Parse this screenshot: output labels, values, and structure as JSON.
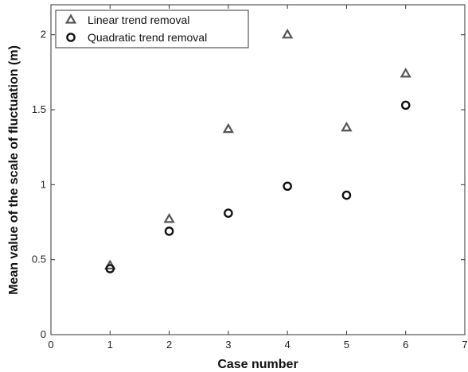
{
  "chart_data": {
    "type": "scatter",
    "title": "",
    "xlabel": "Case number",
    "ylabel": "Mean value of the scale of fluctuation (m)",
    "xlim": [
      0,
      7
    ],
    "ylim": [
      0,
      2.2
    ],
    "xticks": [
      0,
      1,
      2,
      3,
      4,
      5,
      6,
      7
    ],
    "yticks": [
      0,
      0.5,
      1,
      1.5,
      2
    ],
    "ytick_labels": [
      "0",
      "0.5",
      "1",
      "1.5",
      "2"
    ],
    "grid": false,
    "legend_position": "top-left",
    "series": [
      {
        "name": "Linear trend removal",
        "marker": "triangle",
        "color": "#555555",
        "x": [
          1,
          2,
          3,
          4,
          5,
          6
        ],
        "y": [
          0.46,
          0.77,
          1.37,
          2.0,
          1.38,
          1.74
        ]
      },
      {
        "name": "Quadratic trend removal",
        "marker": "circle",
        "color": "#111111",
        "x": [
          1,
          2,
          3,
          4,
          5,
          6
        ],
        "y": [
          0.44,
          0.69,
          0.81,
          0.99,
          0.93,
          1.53
        ]
      }
    ]
  }
}
